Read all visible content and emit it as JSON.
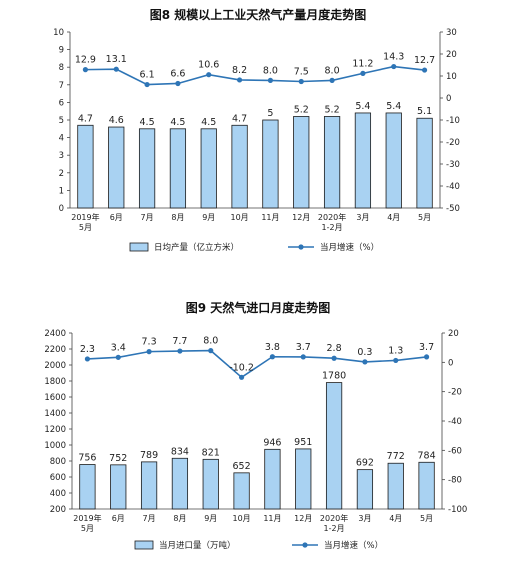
{
  "charts": [
    {
      "title": "图8  规模以上工业天然气产量月度走势图",
      "legend": {
        "bar": "日均产量（亿立方米）",
        "line": "当月增速（%）"
      }
    },
    {
      "title": "图9  天然气进口月度走势图",
      "legend": {
        "bar": "当月进口量（万吨）",
        "line": "当月增速（%）"
      }
    }
  ],
  "colors": {
    "bar_fill": "#a9d2f2",
    "bar_stroke": "#1b1b1b",
    "line": "#2e75b6",
    "text": "#222222"
  },
  "chart_data": [
    {
      "type": "bar",
      "title": "图8  规模以上工业天然气产量月度走势图",
      "categories": [
        "2019年\n5月",
        "6月",
        "7月",
        "8月",
        "9月",
        "10月",
        "11月",
        "12月",
        "2020年\n1-2月",
        "3月",
        "4月",
        "5月"
      ],
      "series": [
        {
          "name": "日均产量（亿立方米）",
          "type": "bar",
          "axis": "left",
          "values": [
            4.7,
            4.6,
            4.5,
            4.5,
            4.5,
            4.7,
            5.0,
            5.2,
            5.2,
            5.4,
            5.4,
            5.1
          ]
        },
        {
          "name": "当月增速（%）",
          "type": "line",
          "axis": "right",
          "values": [
            12.9,
            13.1,
            6.1,
            6.6,
            10.6,
            8.2,
            8.0,
            7.5,
            8.0,
            11.2,
            14.3,
            12.7
          ]
        }
      ],
      "y_left": {
        "min": 0,
        "max": 10,
        "ticks": [
          0,
          1,
          2,
          3,
          4,
          5,
          6,
          7,
          8,
          9,
          10
        ]
      },
      "y_right": {
        "min": -50,
        "max": 30,
        "ticks": [
          -50,
          -40,
          -30,
          -20,
          -10,
          0,
          10,
          20,
          30
        ]
      },
      "legend_position": "bottom",
      "grid": false
    },
    {
      "type": "bar",
      "title": "图9  天然气进口月度走势图",
      "categories": [
        "2019年\n5月",
        "6月",
        "7月",
        "8月",
        "9月",
        "10月",
        "11月",
        "12月",
        "2020年\n1-2月",
        "3月",
        "4月",
        "5月"
      ],
      "series": [
        {
          "name": "当月进口量（万吨）",
          "type": "bar",
          "axis": "left",
          "values": [
            756,
            752,
            789,
            834,
            821,
            652,
            946,
            951,
            1780,
            692,
            772,
            784
          ]
        },
        {
          "name": "当月增速（%）",
          "type": "line",
          "axis": "right",
          "values": [
            2.3,
            3.4,
            7.3,
            7.7,
            8.0,
            -10.2,
            3.8,
            3.7,
            2.8,
            0.3,
            1.3,
            3.7
          ]
        }
      ],
      "y_left": {
        "min": 200,
        "max": 2400,
        "ticks": [
          200,
          400,
          600,
          800,
          1000,
          1200,
          1400,
          1600,
          1800,
          2000,
          2200,
          2400
        ]
      },
      "y_right": {
        "min": -100,
        "max": 20,
        "ticks": [
          -100,
          -80,
          -60,
          -40,
          -20,
          0,
          20
        ]
      },
      "legend_position": "bottom",
      "grid": false
    }
  ]
}
